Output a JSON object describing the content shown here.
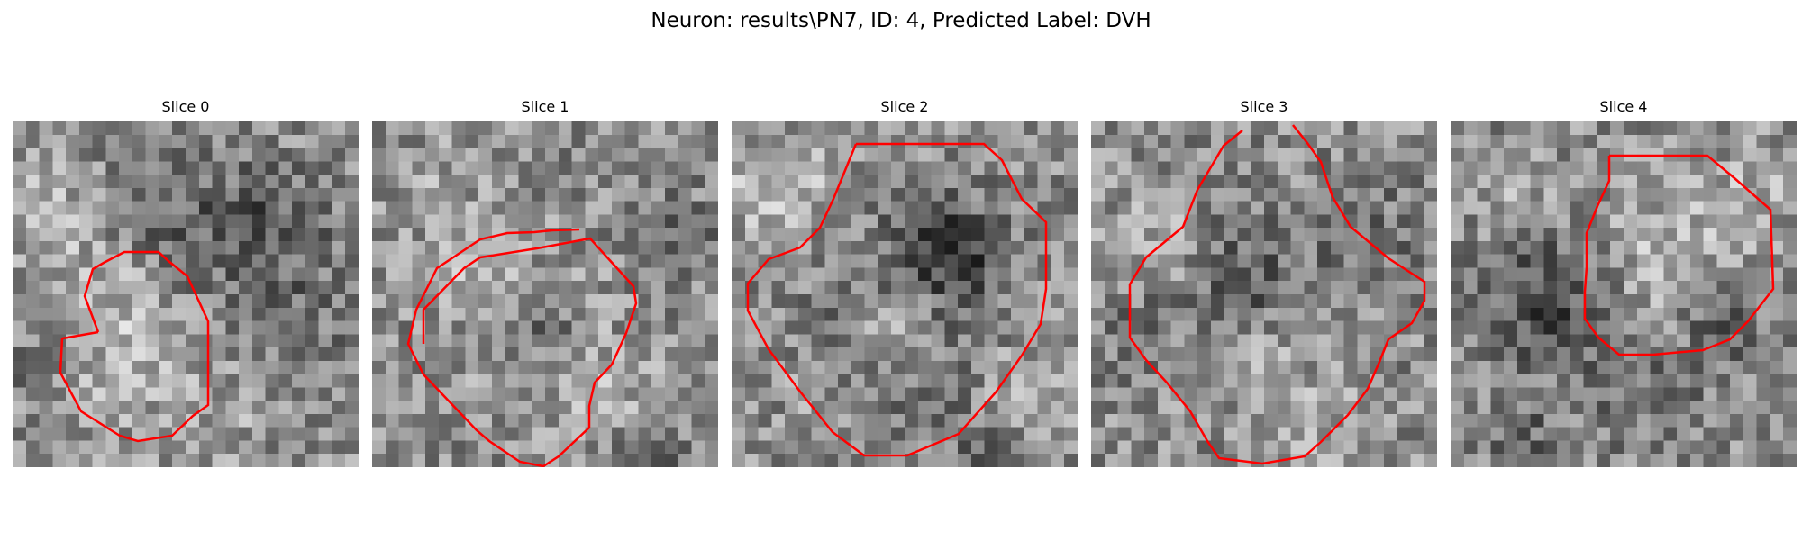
{
  "figure": {
    "title": "Neuron: results\\PN7, ID: 4, Predicted Label: DVH",
    "contour_color": "#ff0000",
    "colormap": "gray",
    "panels": [
      {
        "title": "Slice 0"
      },
      {
        "title": "Slice 1"
      },
      {
        "title": "Slice 2"
      },
      {
        "title": "Slice 3"
      },
      {
        "title": "Slice 4"
      }
    ]
  }
}
